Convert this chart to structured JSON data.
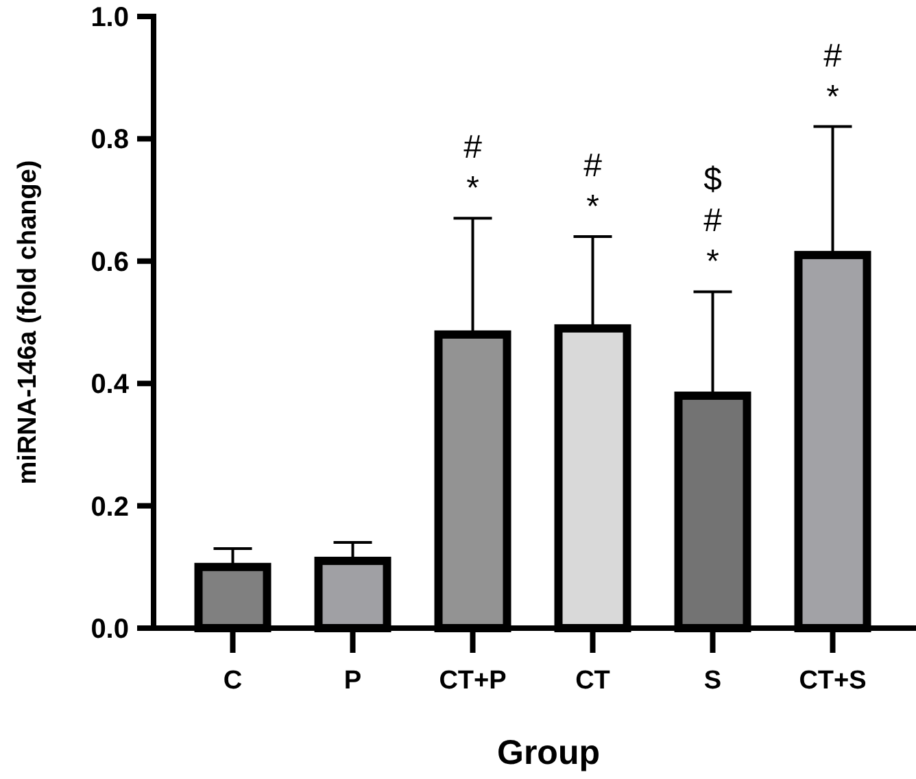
{
  "chart_data": {
    "type": "bar",
    "xlabel": "Group",
    "ylabel": "miRNA-146a (fold change)",
    "categories": [
      "C",
      "P",
      "CT+P",
      "CT",
      "S",
      "CT+S"
    ],
    "values": [
      0.1,
      0.11,
      0.48,
      0.49,
      0.38,
      0.61
    ],
    "colors": [
      "#808080",
      "#a0a0a4",
      "#939393",
      "#d9d9d9",
      "#737373",
      "#a2a2a6"
    ],
    "errors": [
      [
        0.1,
        0.13
      ],
      [
        0.11,
        0.14
      ],
      [
        0.48,
        0.67
      ],
      [
        0.49,
        0.64
      ],
      [
        0.38,
        0.55
      ],
      [
        0.61,
        0.82
      ]
    ],
    "ylim": [
      0,
      1
    ],
    "yticks": [
      {
        "value": 0,
        "label": "0.0"
      },
      {
        "value": 0.2,
        "label": "0.2"
      },
      {
        "value": 0.4,
        "label": "0.4"
      },
      {
        "value": 0.6,
        "label": "0.6"
      },
      {
        "value": 0.8,
        "label": "0.8"
      },
      {
        "value": 1,
        "label": "1.0"
      }
    ],
    "annotations": [
      "*",
      "#",
      "*",
      "#",
      "*",
      "#",
      "$",
      "*",
      "#"
    ],
    "grid": false
  }
}
